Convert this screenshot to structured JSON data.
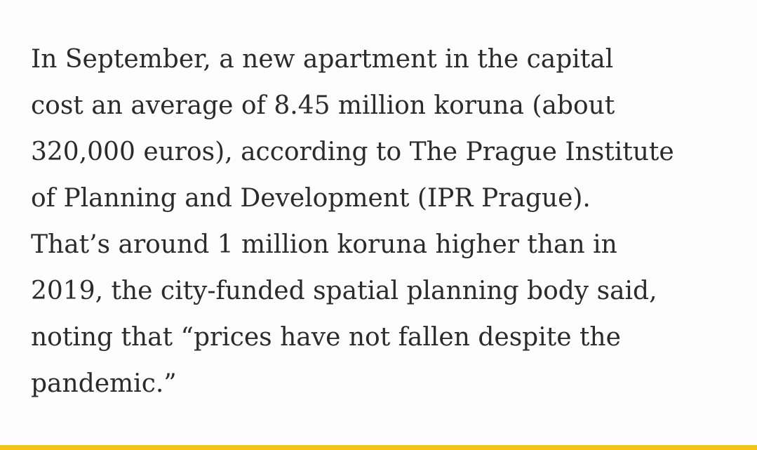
{
  "article": {
    "paragraph_lines": [
      "In September, a new apartment in the capital",
      "cost an average of 8.45 million koruna (about",
      "320,000 euros), according to The Prague Institute",
      "of Planning and Development (IPR Prague).",
      "That’s around 1 million koruna higher than in",
      "2019, the city-funded spatial planning body said,",
      "noting that “prices have not fallen despite the",
      "pandemic.”"
    ]
  },
  "colors": {
    "accent_bar": "#f2c41a",
    "text": "#2b2b2b",
    "background": "#fdfdfd"
  }
}
